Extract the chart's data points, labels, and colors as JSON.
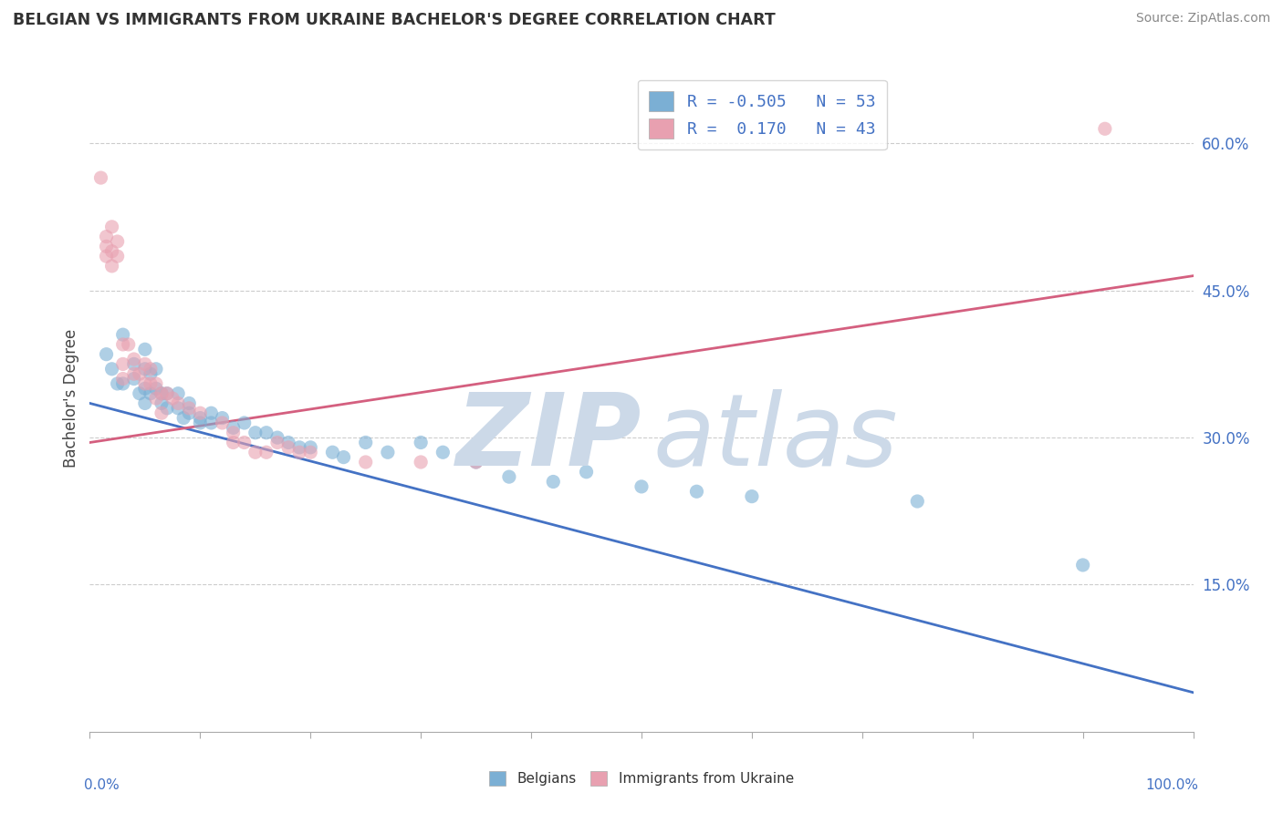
{
  "title": "BELGIAN VS IMMIGRANTS FROM UKRAINE BACHELOR'S DEGREE CORRELATION CHART",
  "source": "Source: ZipAtlas.com",
  "ylabel": "Bachelor's Degree",
  "right_yticks": [
    "60.0%",
    "45.0%",
    "30.0%",
    "15.0%"
  ],
  "right_ytick_vals": [
    0.6,
    0.45,
    0.3,
    0.15
  ],
  "blue_color": "#7bafd4",
  "pink_color": "#e8a0b0",
  "blue_line_color": "#4472c4",
  "pink_line_color": "#d45f7f",
  "watermark_zip_color": "#ccd9e8",
  "watermark_atlas_color": "#ccd9e8",
  "belgians_scatter": [
    [
      0.015,
      0.385
    ],
    [
      0.02,
      0.37
    ],
    [
      0.025,
      0.355
    ],
    [
      0.03,
      0.405
    ],
    [
      0.03,
      0.355
    ],
    [
      0.04,
      0.375
    ],
    [
      0.04,
      0.36
    ],
    [
      0.045,
      0.345
    ],
    [
      0.05,
      0.39
    ],
    [
      0.05,
      0.37
    ],
    [
      0.05,
      0.35
    ],
    [
      0.05,
      0.335
    ],
    [
      0.055,
      0.365
    ],
    [
      0.055,
      0.345
    ],
    [
      0.06,
      0.37
    ],
    [
      0.06,
      0.35
    ],
    [
      0.065,
      0.345
    ],
    [
      0.065,
      0.335
    ],
    [
      0.07,
      0.345
    ],
    [
      0.07,
      0.33
    ],
    [
      0.08,
      0.345
    ],
    [
      0.08,
      0.33
    ],
    [
      0.085,
      0.32
    ],
    [
      0.09,
      0.335
    ],
    [
      0.09,
      0.325
    ],
    [
      0.1,
      0.32
    ],
    [
      0.1,
      0.315
    ],
    [
      0.11,
      0.325
    ],
    [
      0.11,
      0.315
    ],
    [
      0.12,
      0.32
    ],
    [
      0.13,
      0.31
    ],
    [
      0.14,
      0.315
    ],
    [
      0.15,
      0.305
    ],
    [
      0.16,
      0.305
    ],
    [
      0.17,
      0.3
    ],
    [
      0.18,
      0.295
    ],
    [
      0.19,
      0.29
    ],
    [
      0.2,
      0.29
    ],
    [
      0.22,
      0.285
    ],
    [
      0.23,
      0.28
    ],
    [
      0.25,
      0.295
    ],
    [
      0.27,
      0.285
    ],
    [
      0.3,
      0.295
    ],
    [
      0.32,
      0.285
    ],
    [
      0.35,
      0.275
    ],
    [
      0.38,
      0.26
    ],
    [
      0.42,
      0.255
    ],
    [
      0.45,
      0.265
    ],
    [
      0.5,
      0.25
    ],
    [
      0.55,
      0.245
    ],
    [
      0.6,
      0.24
    ],
    [
      0.75,
      0.235
    ],
    [
      0.9,
      0.17
    ]
  ],
  "ukraine_scatter": [
    [
      0.01,
      0.565
    ],
    [
      0.015,
      0.505
    ],
    [
      0.015,
      0.495
    ],
    [
      0.015,
      0.485
    ],
    [
      0.02,
      0.515
    ],
    [
      0.02,
      0.49
    ],
    [
      0.02,
      0.475
    ],
    [
      0.025,
      0.5
    ],
    [
      0.025,
      0.485
    ],
    [
      0.03,
      0.395
    ],
    [
      0.03,
      0.375
    ],
    [
      0.03,
      0.36
    ],
    [
      0.035,
      0.395
    ],
    [
      0.04,
      0.38
    ],
    [
      0.04,
      0.365
    ],
    [
      0.045,
      0.365
    ],
    [
      0.05,
      0.375
    ],
    [
      0.05,
      0.355
    ],
    [
      0.055,
      0.37
    ],
    [
      0.055,
      0.355
    ],
    [
      0.06,
      0.355
    ],
    [
      0.06,
      0.34
    ],
    [
      0.065,
      0.345
    ],
    [
      0.065,
      0.325
    ],
    [
      0.07,
      0.345
    ],
    [
      0.075,
      0.34
    ],
    [
      0.08,
      0.335
    ],
    [
      0.09,
      0.33
    ],
    [
      0.1,
      0.325
    ],
    [
      0.12,
      0.315
    ],
    [
      0.13,
      0.305
    ],
    [
      0.13,
      0.295
    ],
    [
      0.14,
      0.295
    ],
    [
      0.15,
      0.285
    ],
    [
      0.16,
      0.285
    ],
    [
      0.17,
      0.295
    ],
    [
      0.18,
      0.29
    ],
    [
      0.19,
      0.285
    ],
    [
      0.2,
      0.285
    ],
    [
      0.25,
      0.275
    ],
    [
      0.3,
      0.275
    ],
    [
      0.35,
      0.275
    ],
    [
      0.92,
      0.615
    ]
  ],
  "blue_line_x": [
    0.0,
    1.0
  ],
  "blue_line_y": [
    0.335,
    0.04
  ],
  "pink_line_x": [
    0.0,
    1.0
  ],
  "pink_line_y": [
    0.295,
    0.465
  ],
  "xlim": [
    0.0,
    1.0
  ],
  "ylim": [
    0.0,
    0.68
  ],
  "legend1_labels": [
    "R = -0.505   N = 53",
    "R =  0.170   N = 43"
  ],
  "legend2_labels": [
    "Belgians",
    "Immigrants from Ukraine"
  ]
}
